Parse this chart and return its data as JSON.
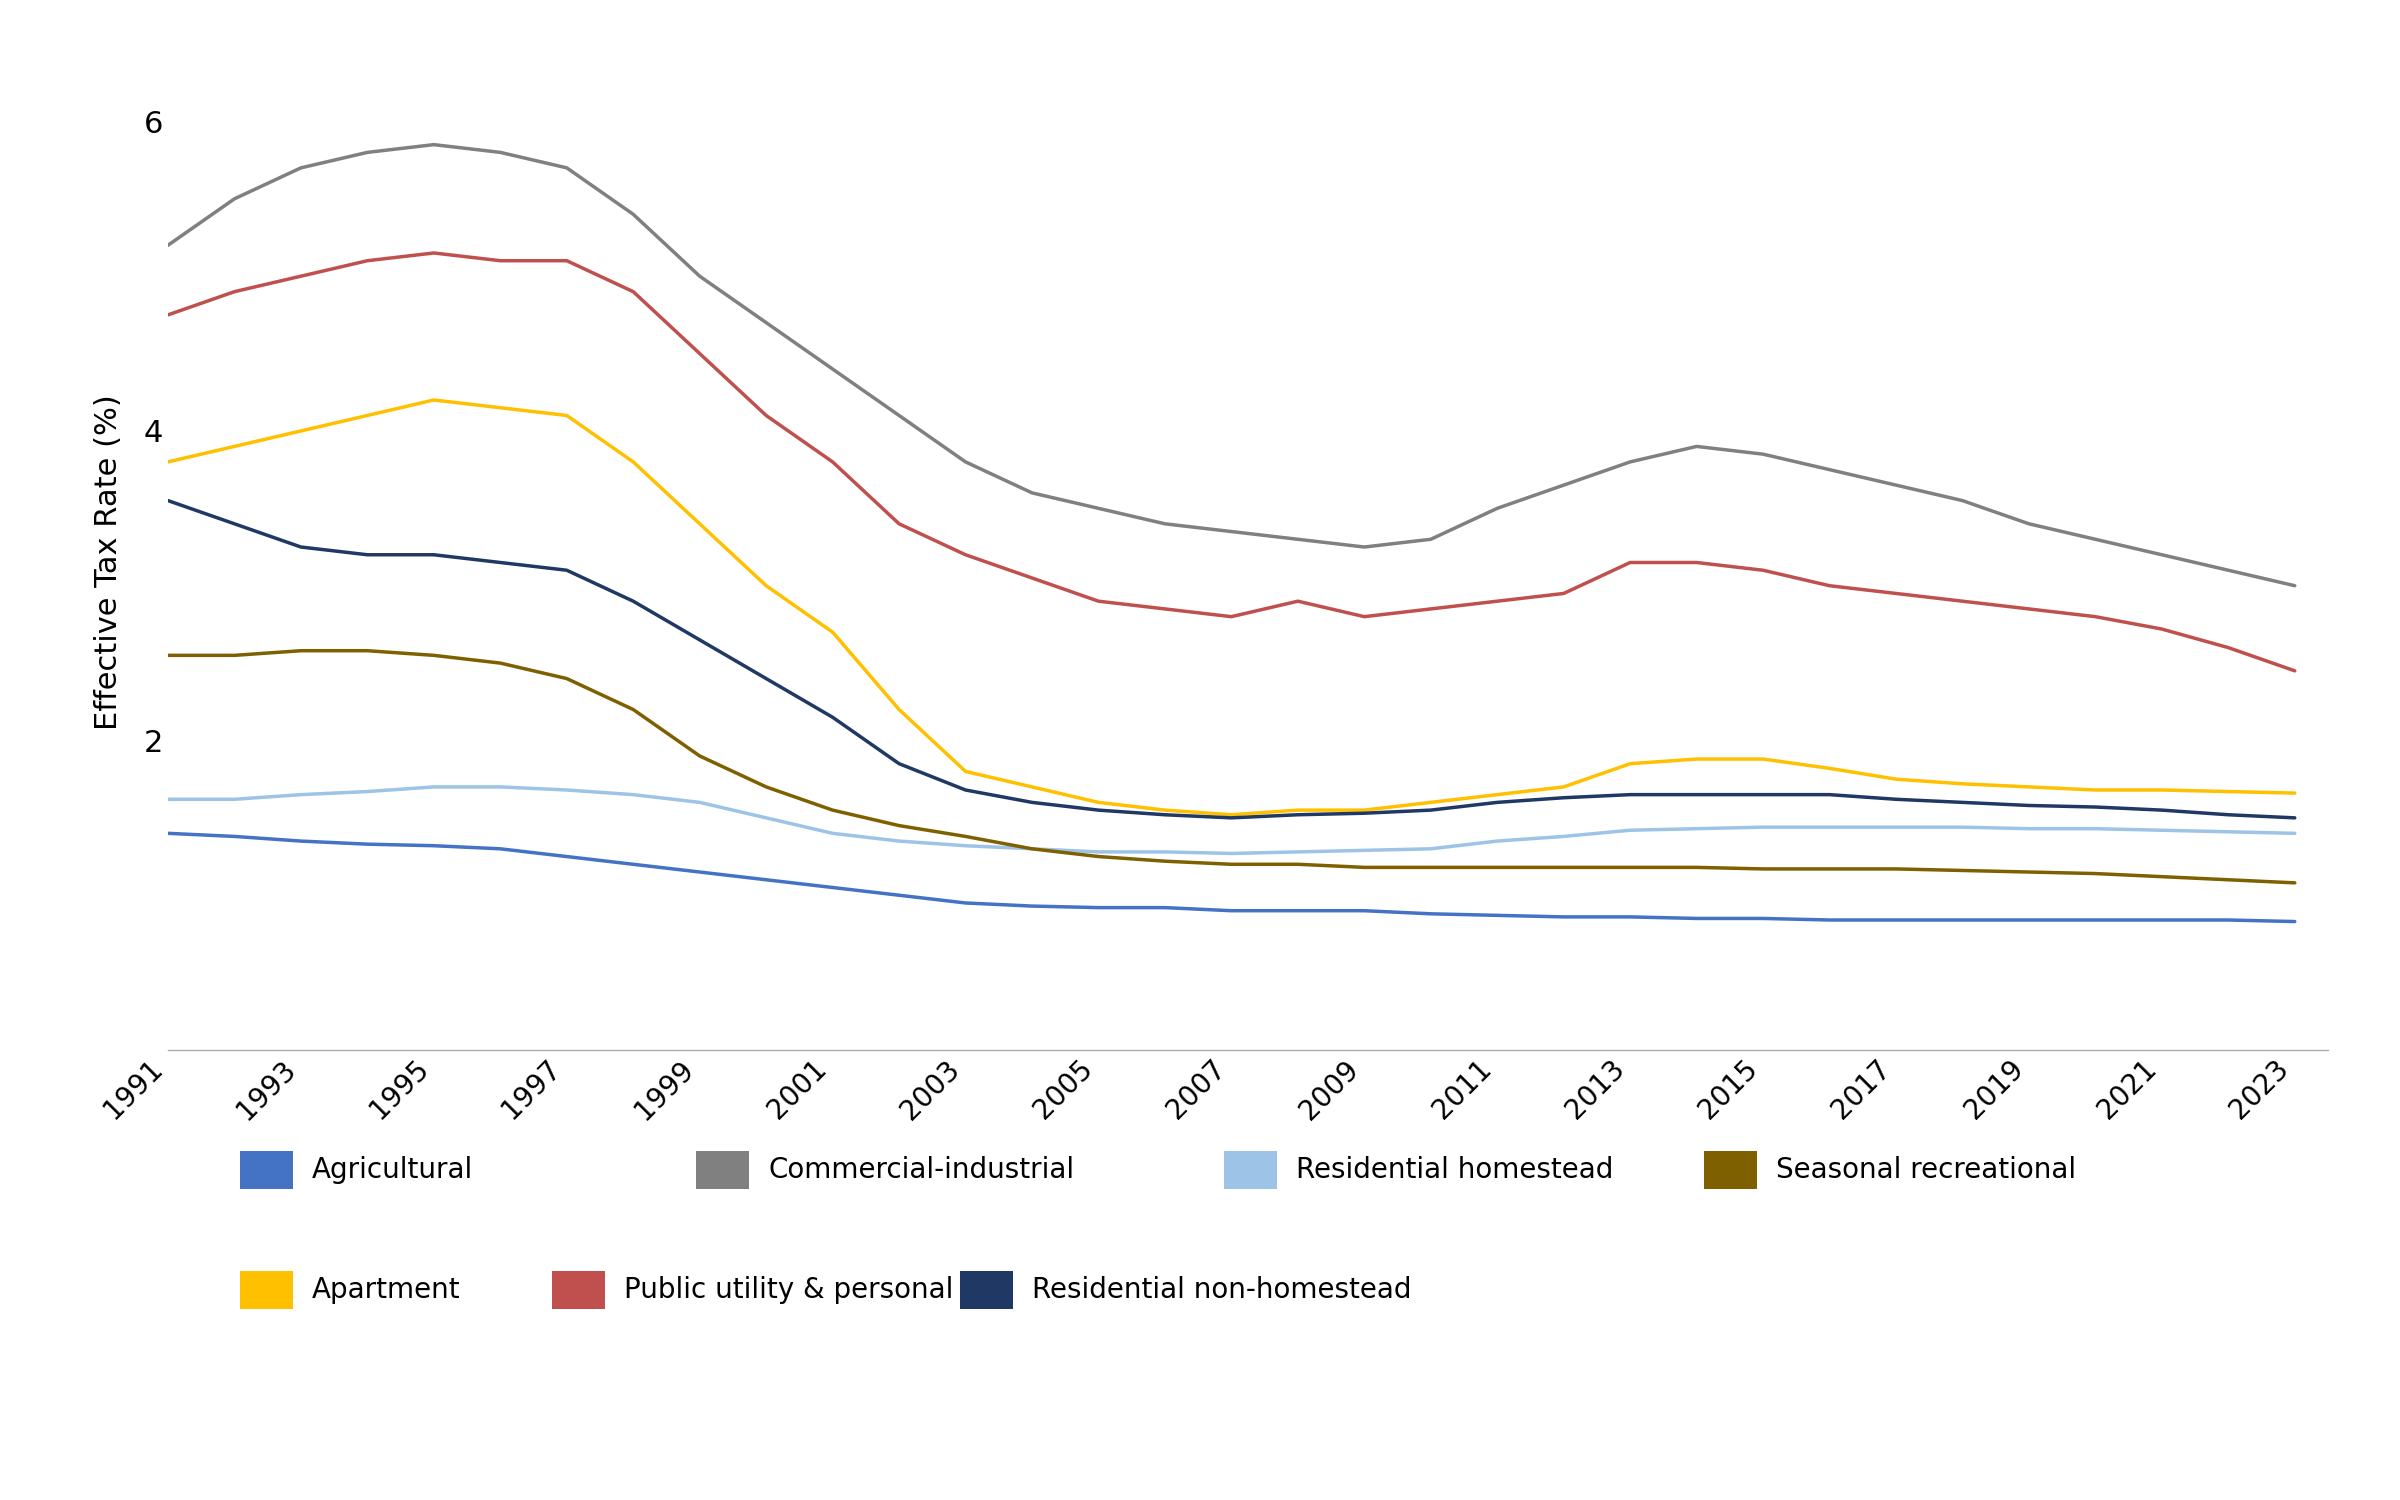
{
  "ylabel": "Effective Tax Rate (%)",
  "years": [
    1991,
    1992,
    1993,
    1994,
    1995,
    1996,
    1997,
    1998,
    1999,
    2000,
    2001,
    2002,
    2003,
    2004,
    2005,
    2006,
    2007,
    2008,
    2009,
    2010,
    2011,
    2012,
    2013,
    2014,
    2015,
    2016,
    2017,
    2018,
    2019,
    2020,
    2021,
    2022,
    2023
  ],
  "series": {
    "Agricultural": {
      "color": "#4472C4",
      "data": [
        1.4,
        1.38,
        1.35,
        1.33,
        1.32,
        1.3,
        1.25,
        1.2,
        1.15,
        1.1,
        1.05,
        1.0,
        0.95,
        0.93,
        0.92,
        0.92,
        0.9,
        0.9,
        0.9,
        0.88,
        0.87,
        0.86,
        0.86,
        0.85,
        0.85,
        0.84,
        0.84,
        0.84,
        0.84,
        0.84,
        0.84,
        0.84,
        0.83
      ]
    },
    "Commercial-industrial": {
      "color": "#808080",
      "data": [
        5.2,
        5.5,
        5.7,
        5.8,
        5.85,
        5.8,
        5.7,
        5.4,
        5.0,
        4.7,
        4.4,
        4.1,
        3.8,
        3.6,
        3.5,
        3.4,
        3.35,
        3.3,
        3.25,
        3.3,
        3.5,
        3.65,
        3.8,
        3.9,
        3.85,
        3.75,
        3.65,
        3.55,
        3.4,
        3.3,
        3.2,
        3.1,
        3.0
      ]
    },
    "Residential homestead": {
      "color": "#9DC3E6",
      "data": [
        1.62,
        1.62,
        1.65,
        1.67,
        1.7,
        1.7,
        1.68,
        1.65,
        1.6,
        1.5,
        1.4,
        1.35,
        1.32,
        1.3,
        1.28,
        1.28,
        1.27,
        1.28,
        1.29,
        1.3,
        1.35,
        1.38,
        1.42,
        1.43,
        1.44,
        1.44,
        1.44,
        1.44,
        1.43,
        1.43,
        1.42,
        1.41,
        1.4
      ]
    },
    "Seasonal recreational": {
      "color": "#7F6000",
      "data": [
        2.55,
        2.55,
        2.58,
        2.58,
        2.55,
        2.5,
        2.4,
        2.2,
        1.9,
        1.7,
        1.55,
        1.45,
        1.38,
        1.3,
        1.25,
        1.22,
        1.2,
        1.2,
        1.18,
        1.18,
        1.18,
        1.18,
        1.18,
        1.18,
        1.17,
        1.17,
        1.17,
        1.16,
        1.15,
        1.14,
        1.12,
        1.1,
        1.08
      ]
    },
    "Apartment": {
      "color": "#FFC000",
      "data": [
        3.8,
        3.9,
        4.0,
        4.1,
        4.2,
        4.15,
        4.1,
        3.8,
        3.4,
        3.0,
        2.7,
        2.2,
        1.8,
        1.7,
        1.6,
        1.55,
        1.52,
        1.55,
        1.55,
        1.6,
        1.65,
        1.7,
        1.85,
        1.88,
        1.88,
        1.82,
        1.75,
        1.72,
        1.7,
        1.68,
        1.68,
        1.67,
        1.66
      ]
    },
    "Public utility & personal": {
      "color": "#C0504D",
      "data": [
        4.75,
        4.9,
        5.0,
        5.1,
        5.15,
        5.1,
        5.1,
        4.9,
        4.5,
        4.1,
        3.8,
        3.4,
        3.2,
        3.05,
        2.9,
        2.85,
        2.8,
        2.9,
        2.8,
        2.85,
        2.9,
        2.95,
        3.15,
        3.15,
        3.1,
        3.0,
        2.95,
        2.9,
        2.85,
        2.8,
        2.72,
        2.6,
        2.45
      ]
    },
    "Residential non-homestead": {
      "color": "#1F3864",
      "data": [
        3.55,
        3.4,
        3.25,
        3.2,
        3.2,
        3.15,
        3.1,
        2.9,
        2.65,
        2.4,
        2.15,
        1.85,
        1.68,
        1.6,
        1.55,
        1.52,
        1.5,
        1.52,
        1.53,
        1.55,
        1.6,
        1.63,
        1.65,
        1.65,
        1.65,
        1.65,
        1.62,
        1.6,
        1.58,
        1.57,
        1.55,
        1.52,
        1.5
      ]
    }
  },
  "ylim": [
    0,
    6.3
  ],
  "yticks": [
    2,
    4,
    6
  ],
  "ytick_labels": [
    "2",
    "4",
    "6"
  ],
  "xtick_labels": [
    "1991",
    "1993",
    "1995",
    "1997",
    "1999",
    "2001",
    "2003",
    "2005",
    "2007",
    "2009",
    "2011",
    "2013",
    "2015",
    "2017",
    "2019",
    "2021",
    "2023"
  ],
  "xtick_years": [
    1991,
    1993,
    1995,
    1997,
    1999,
    2001,
    2003,
    2005,
    2007,
    2009,
    2011,
    2013,
    2015,
    2017,
    2019,
    2021,
    2023
  ],
  "linewidth": 2.5,
  "background_color": "#ffffff",
  "legend_row1": [
    "Agricultural",
    "Commercial-industrial",
    "Residential homestead",
    "Seasonal recreational"
  ],
  "legend_row2": [
    "Apartment",
    "Public utility & personal",
    "Residential non-homestead"
  ]
}
